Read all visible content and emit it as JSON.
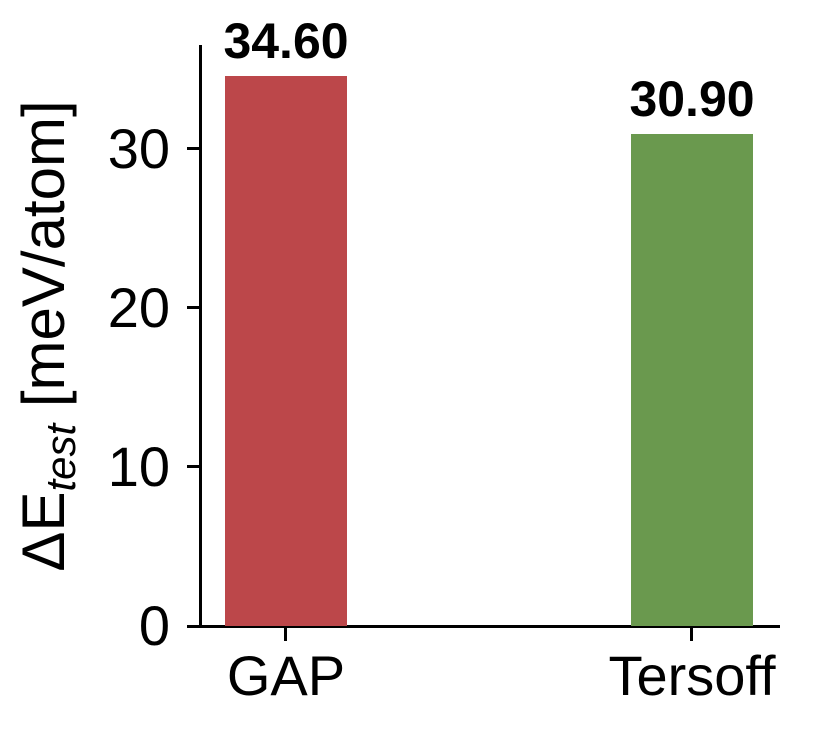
{
  "figure": {
    "background": "#ffffff",
    "axis_color": "#000000",
    "text_color": "#000000"
  },
  "chart_data": {
    "type": "bar",
    "categories": [
      "GAP",
      "Tersoff"
    ],
    "values": [
      34.6,
      30.9
    ],
    "value_labels": [
      "34.60",
      "30.90"
    ],
    "bar_colors": [
      "#bc474a",
      "#6a994e"
    ],
    "title": "",
    "xlabel": "",
    "ylabel": "ΔE_test [meV/atom]",
    "ylabel_parts": {
      "base": "ΔE",
      "subscript": "test",
      "unit": " [meV/atom]"
    },
    "yticks": [
      "0",
      "10",
      "20",
      "30"
    ],
    "ytick_values": [
      0,
      10,
      20,
      30
    ],
    "ylim": [
      0,
      36.4
    ],
    "grid": false,
    "legend": null,
    "layout": {
      "bar_center_fracs": [
        0.148,
        0.848
      ],
      "bar_width_frac": 0.21,
      "spines": [
        "left",
        "bottom"
      ],
      "tick_direction": "out"
    }
  }
}
